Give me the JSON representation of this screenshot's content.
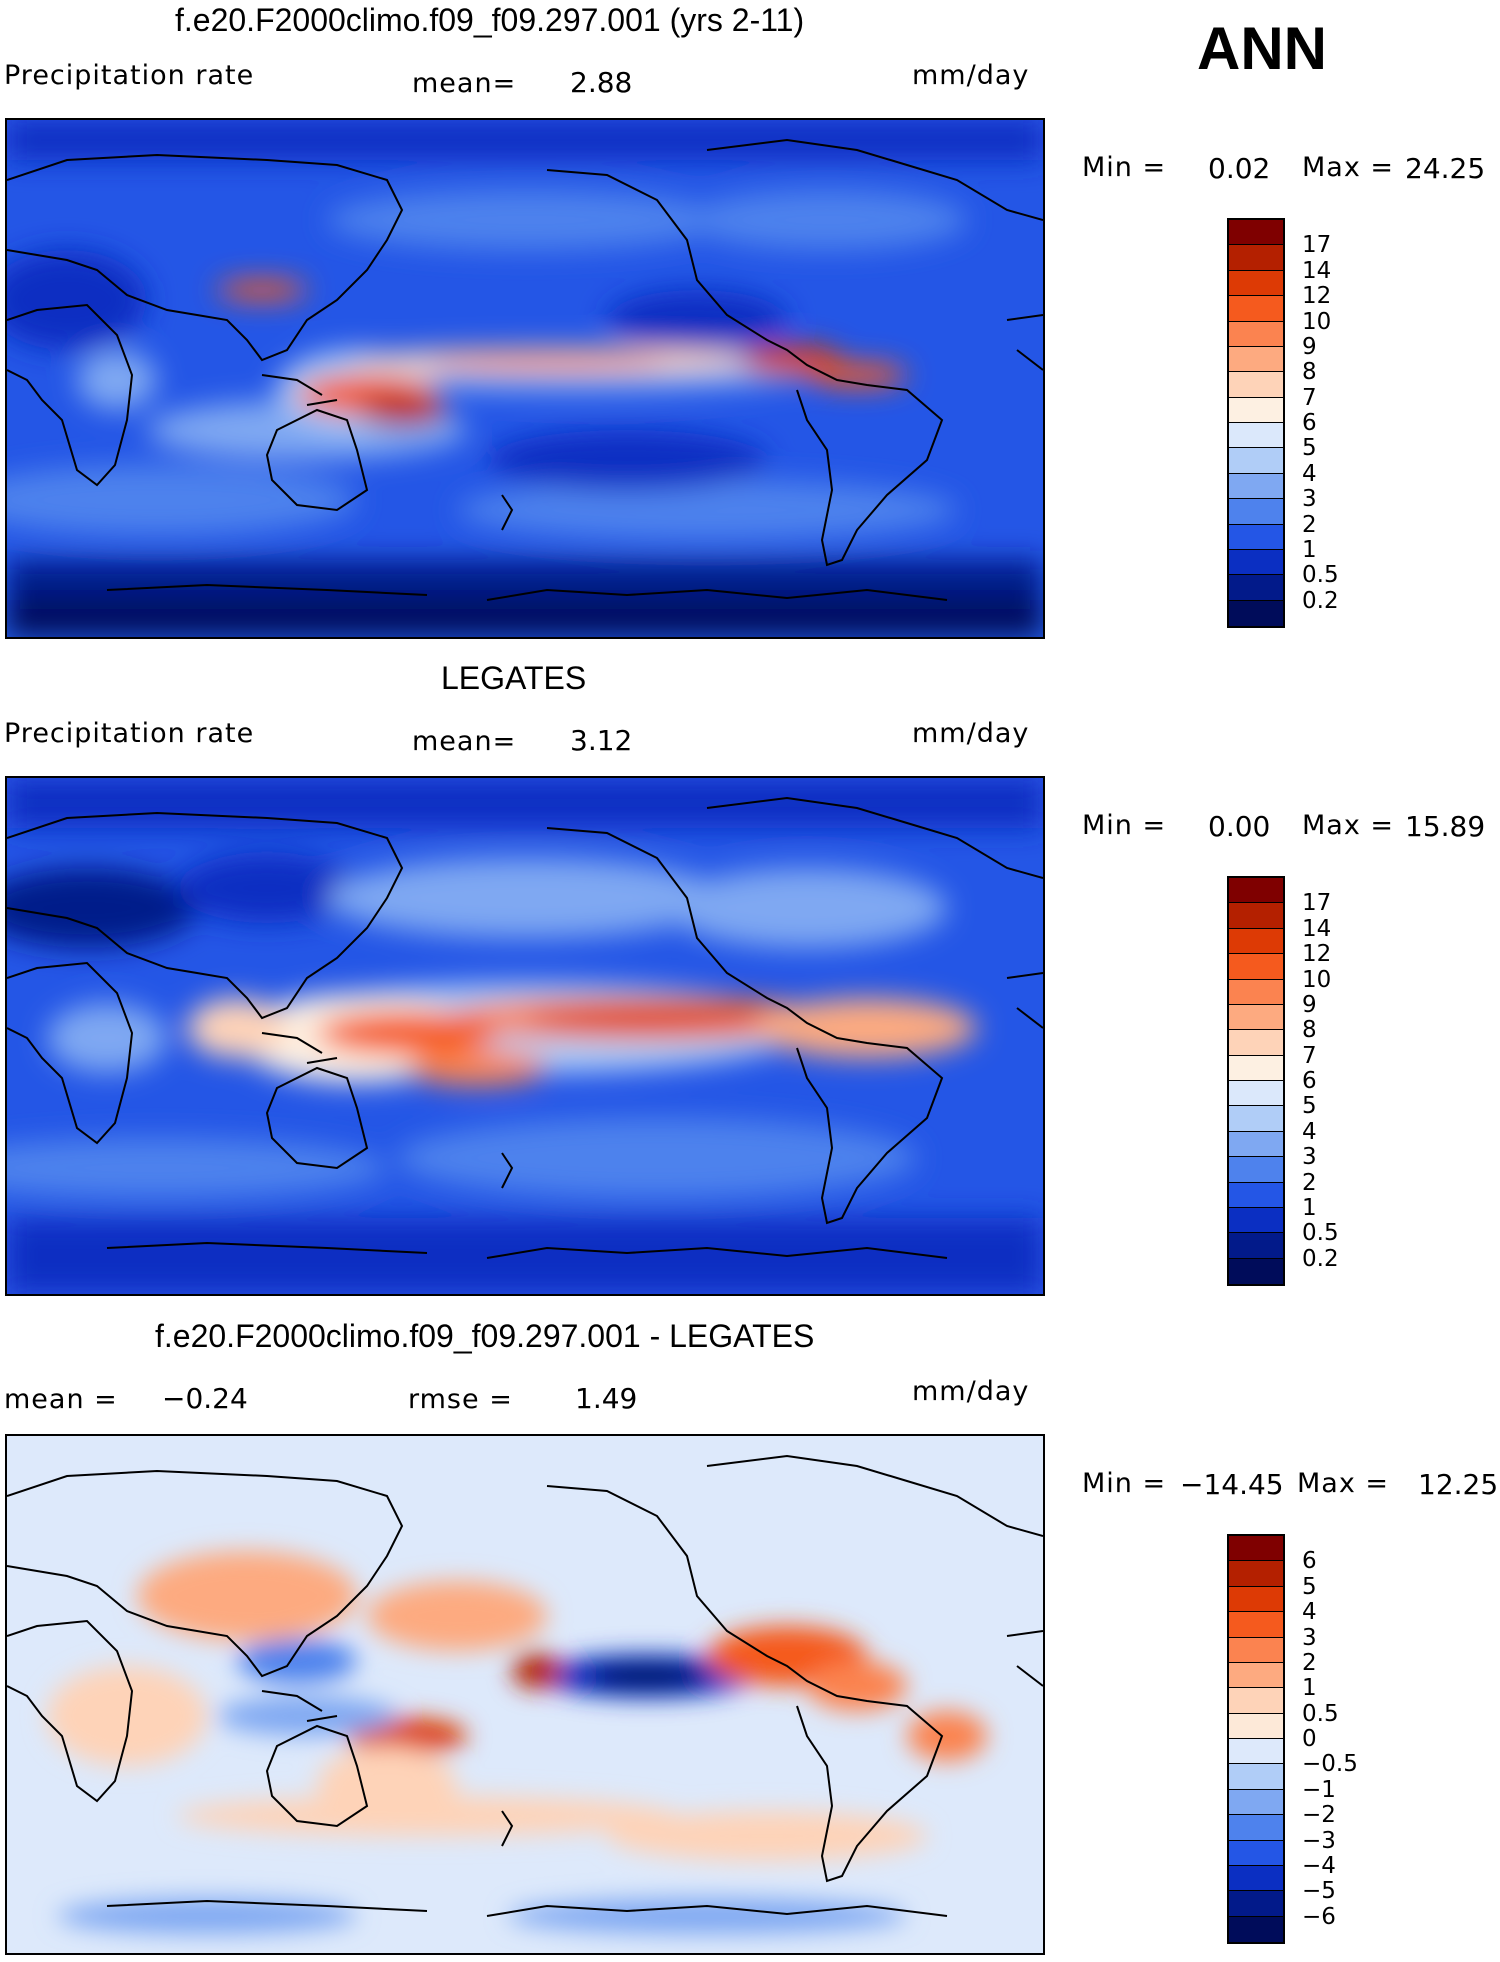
{
  "figure": {
    "season_label": "ANN"
  },
  "panels": [
    {
      "title": "f.e20.F2000climo.f09_f09.297.001 (yrs 2-11)",
      "field_label": "Precipitation rate",
      "stat1_label": "mean=",
      "stat1_value": "2.88",
      "units": "mm/day",
      "min_label": "Min =",
      "min_value": "0.02",
      "max_label": "Max =",
      "max_value": "24.25",
      "colorbar_labels": [
        "17",
        "14",
        "12",
        "10",
        "9",
        "8",
        "7",
        "6",
        "5",
        "4",
        "3",
        "2",
        "1",
        "0.5",
        "0.2"
      ],
      "colorbar_colors": [
        "#7f0000",
        "#b42000",
        "#dd3a05",
        "#f55a1e",
        "#fb8350",
        "#fdaa80",
        "#fed3b8",
        "#fdf0e2",
        "#dbe8fb",
        "#b0cdf7",
        "#7fa8f2",
        "#4e82ed",
        "#2456e6",
        "#0b2fc2",
        "#021a8a",
        "#000c5a"
      ]
    },
    {
      "title": "LEGATES",
      "field_label": "Precipitation rate",
      "stat1_label": "mean=",
      "stat1_value": "3.12",
      "units": "mm/day",
      "min_label": "Min =",
      "min_value": "0.00",
      "max_label": "Max =",
      "max_value": "15.89",
      "colorbar_labels": [
        "17",
        "14",
        "12",
        "10",
        "9",
        "8",
        "7",
        "6",
        "5",
        "4",
        "3",
        "2",
        "1",
        "0.5",
        "0.2"
      ],
      "colorbar_colors": [
        "#7f0000",
        "#b42000",
        "#dd3a05",
        "#f55a1e",
        "#fb8350",
        "#fdaa80",
        "#fed3b8",
        "#fdf0e2",
        "#dbe8fb",
        "#b0cdf7",
        "#7fa8f2",
        "#4e82ed",
        "#2456e6",
        "#0b2fc2",
        "#021a8a",
        "#000c5a"
      ]
    },
    {
      "title": "f.e20.F2000climo.f09_f09.297.001 - LEGATES",
      "field_label": "mean =",
      "stat1_value": "−0.24",
      "stat2_label": "rmse =",
      "stat2_value": "1.49",
      "units": "mm/day",
      "min_label": "Min =",
      "min_value": "−14.45",
      "max_label": "Max =",
      "max_value": "12.25",
      "colorbar_labels": [
        "6",
        "5",
        "4",
        "3",
        "2",
        "1",
        "0.5",
        "0",
        "−0.5",
        "−1",
        "−2",
        "−3",
        "−4",
        "−5",
        "−6"
      ],
      "colorbar_colors": [
        "#7f0000",
        "#b42000",
        "#dd3a05",
        "#f55a1e",
        "#fb8350",
        "#fdaa80",
        "#fed3b8",
        "#fde9d8",
        "#dde9fb",
        "#b0cdf7",
        "#7fa8f2",
        "#4e82ed",
        "#2456e6",
        "#0b2fc2",
        "#021a8a",
        "#000c5a"
      ]
    }
  ]
}
